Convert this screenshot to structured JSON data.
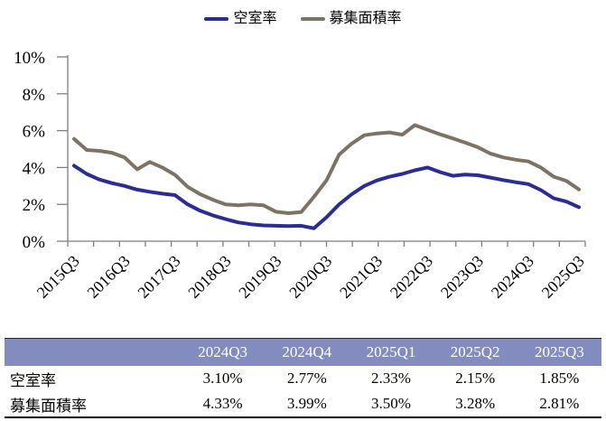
{
  "legend": {
    "items": [
      {
        "label": "空室率",
        "color": "#2B2E90"
      },
      {
        "label": "募集面積率",
        "color": "#7C7365"
      }
    ]
  },
  "chart_data": {
    "type": "line",
    "x": [
      "2015Q3",
      "2015Q4",
      "2016Q1",
      "2016Q2",
      "2016Q3",
      "2016Q4",
      "2017Q1",
      "2017Q2",
      "2017Q3",
      "2017Q4",
      "2018Q1",
      "2018Q2",
      "2018Q3",
      "2018Q4",
      "2019Q1",
      "2019Q2",
      "2019Q3",
      "2019Q4",
      "2020Q1",
      "2020Q2",
      "2020Q3",
      "2020Q4",
      "2021Q1",
      "2021Q2",
      "2021Q3",
      "2021Q4",
      "2022Q1",
      "2022Q2",
      "2022Q3",
      "2022Q4",
      "2023Q1",
      "2023Q2",
      "2023Q3",
      "2023Q4",
      "2024Q1",
      "2024Q2",
      "2024Q3",
      "2024Q4",
      "2025Q1",
      "2025Q2",
      "2025Q3"
    ],
    "x_label_every": 4,
    "x_tick_labels_shown": [
      "2015Q3",
      "2016Q3",
      "2017Q3",
      "2018Q3",
      "2019Q3",
      "2020Q3",
      "2021Q3",
      "2022Q3",
      "2023Q3",
      "2024Q3",
      "2025Q3"
    ],
    "series": [
      {
        "name": "空室率",
        "color": "#2B2E90",
        "values": [
          4.1,
          3.65,
          3.35,
          3.15,
          3.0,
          2.8,
          2.68,
          2.58,
          2.5,
          2.0,
          1.65,
          1.4,
          1.2,
          1.02,
          0.92,
          0.86,
          0.84,
          0.82,
          0.84,
          0.7,
          1.3,
          2.0,
          2.55,
          3.0,
          3.3,
          3.5,
          3.65,
          3.85,
          4.0,
          3.75,
          3.55,
          3.62,
          3.58,
          3.45,
          3.32,
          3.2,
          3.1,
          2.77,
          2.33,
          2.15,
          1.85
        ]
      },
      {
        "name": "募集面積率",
        "color": "#7C7365",
        "values": [
          5.55,
          4.95,
          4.9,
          4.8,
          4.55,
          3.9,
          4.3,
          4.0,
          3.6,
          2.95,
          2.55,
          2.25,
          2.0,
          1.95,
          2.0,
          1.95,
          1.6,
          1.52,
          1.58,
          2.4,
          3.3,
          4.7,
          5.3,
          5.75,
          5.85,
          5.9,
          5.78,
          6.3,
          6.05,
          5.8,
          5.58,
          5.35,
          5.1,
          4.75,
          4.55,
          4.42,
          4.33,
          3.99,
          3.5,
          3.28,
          2.81
        ]
      }
    ],
    "title": "",
    "xlabel": "",
    "ylabel": "",
    "ylim": [
      0,
      10
    ],
    "y_ticks": [
      "0%",
      "2%",
      "4%",
      "6%",
      "8%",
      "10%"
    ],
    "grid": false,
    "legend_position": "top"
  },
  "table": {
    "header_bg": "#828CBE",
    "header_text_color": "#FFFFFF",
    "columns": [
      "",
      "2024Q3",
      "2024Q4",
      "2025Q1",
      "2025Q2",
      "2025Q3"
    ],
    "rows": [
      {
        "label": "空室率",
        "values": [
          "3.10%",
          "2.77%",
          "2.33%",
          "2.15%",
          "1.85%"
        ]
      },
      {
        "label": "募集面積率",
        "values": [
          "4.33%",
          "3.99%",
          "3.50%",
          "3.28%",
          "2.81%"
        ]
      }
    ]
  }
}
